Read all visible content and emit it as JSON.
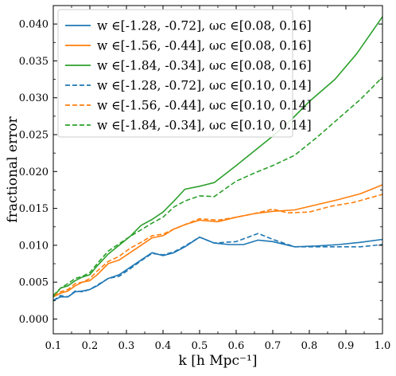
{
  "chart_data": {
    "type": "line",
    "title": "",
    "xlabel": "k [h Mpc⁻¹]",
    "ylabel": "fractional error",
    "xlim": [
      0.1,
      1.0
    ],
    "ylim": [
      -0.002,
      0.0425
    ],
    "xticks": [
      "0.1",
      "0.2",
      "0.3",
      "0.4",
      "0.5",
      "0.6",
      "0.7",
      "0.8",
      "0.9",
      "1.0"
    ],
    "yticks": [
      "0.000",
      "0.005",
      "0.010",
      "0.015",
      "0.020",
      "0.025",
      "0.030",
      "0.035",
      "0.040"
    ],
    "grid": false,
    "legend_position": "top-left",
    "series": [
      {
        "name": "w ∈[-1.28, -0.72], ωc ∈[0.08, 0.16]",
        "color": "#1f77b4",
        "dash": "solid",
        "x": [
          0.1,
          0.12,
          0.14,
          0.16,
          0.18,
          0.2,
          0.22,
          0.25,
          0.28,
          0.31,
          0.34,
          0.37,
          0.4,
          0.43,
          0.46,
          0.5,
          0.54,
          0.58,
          0.62,
          0.66,
          0.7,
          0.76,
          0.82,
          0.88,
          0.94,
          1.0
        ],
        "y": [
          0.0025,
          0.003,
          0.003,
          0.0037,
          0.0038,
          0.004,
          0.0045,
          0.0055,
          0.006,
          0.007,
          0.008,
          0.009,
          0.0086,
          0.009,
          0.0098,
          0.0111,
          0.0103,
          0.0101,
          0.0101,
          0.0107,
          0.0105,
          0.0098,
          0.0099,
          0.0101,
          0.0104,
          0.0108
        ]
      },
      {
        "name": "w ∈[-1.56, -0.44], ωc ∈[0.08, 0.16]",
        "color": "#ff7f0e",
        "dash": "solid",
        "x": [
          0.1,
          0.12,
          0.14,
          0.16,
          0.18,
          0.2,
          0.22,
          0.25,
          0.28,
          0.31,
          0.34,
          0.37,
          0.4,
          0.43,
          0.46,
          0.5,
          0.55,
          0.6,
          0.65,
          0.7,
          0.76,
          0.82,
          0.88,
          0.94,
          1.0
        ],
        "y": [
          0.003,
          0.0035,
          0.0038,
          0.0045,
          0.005,
          0.0052,
          0.006,
          0.0075,
          0.008,
          0.009,
          0.01,
          0.011,
          0.0113,
          0.0122,
          0.0128,
          0.0134,
          0.0132,
          0.0138,
          0.0143,
          0.0146,
          0.0148,
          0.0155,
          0.0162,
          0.017,
          0.0182
        ]
      },
      {
        "name": "w ∈[-1.84, -0.34], ωc ∈[0.08, 0.16]",
        "color": "#2ca02c",
        "dash": "solid",
        "x": [
          0.1,
          0.12,
          0.14,
          0.16,
          0.18,
          0.2,
          0.22,
          0.25,
          0.28,
          0.31,
          0.34,
          0.37,
          0.4,
          0.43,
          0.46,
          0.5,
          0.54,
          0.6,
          0.65,
          0.7,
          0.75,
          0.8,
          0.87,
          0.93,
          1.0
        ],
        "y": [
          0.003,
          0.0042,
          0.0045,
          0.0052,
          0.0057,
          0.006,
          0.0072,
          0.0088,
          0.01,
          0.0112,
          0.0127,
          0.0135,
          0.0145,
          0.016,
          0.0176,
          0.018,
          0.0185,
          0.0208,
          0.0228,
          0.0248,
          0.027,
          0.0295,
          0.0325,
          0.036,
          0.041
        ]
      },
      {
        "name": "w ∈[-1.28, -0.72], ωc ∈[0.10, 0.14]",
        "color": "#1f77b4",
        "dash": "dashed",
        "x": [
          0.1,
          0.12,
          0.14,
          0.16,
          0.18,
          0.2,
          0.22,
          0.25,
          0.28,
          0.31,
          0.34,
          0.37,
          0.4,
          0.43,
          0.46,
          0.5,
          0.54,
          0.6,
          0.66,
          0.7,
          0.76,
          0.82,
          0.88,
          0.94,
          1.0
        ],
        "y": [
          0.0025,
          0.0032,
          0.003,
          0.0038,
          0.0037,
          0.004,
          0.0046,
          0.0055,
          0.0058,
          0.0068,
          0.0079,
          0.0089,
          0.0087,
          0.0091,
          0.0099,
          0.0111,
          0.0103,
          0.0105,
          0.0116,
          0.0108,
          0.0098,
          0.0098,
          0.0098,
          0.0098,
          0.0101
        ]
      },
      {
        "name": "w ∈[-1.56, -0.44], ωc ∈[0.10, 0.14]",
        "color": "#ff7f0e",
        "dash": "dashed",
        "x": [
          0.1,
          0.12,
          0.14,
          0.16,
          0.18,
          0.2,
          0.22,
          0.25,
          0.28,
          0.31,
          0.34,
          0.37,
          0.4,
          0.43,
          0.46,
          0.5,
          0.55,
          0.6,
          0.65,
          0.7,
          0.74,
          0.8,
          0.86,
          0.92,
          1.0
        ],
        "y": [
          0.0032,
          0.0037,
          0.004,
          0.0048,
          0.005,
          0.0055,
          0.0065,
          0.0078,
          0.0085,
          0.0096,
          0.0104,
          0.0113,
          0.0115,
          0.0122,
          0.0128,
          0.0136,
          0.0134,
          0.0138,
          0.0143,
          0.0149,
          0.0144,
          0.0145,
          0.0153,
          0.0158,
          0.0169
        ]
      },
      {
        "name": "w ∈[-1.84, -0.34], ωc ∈[0.10, 0.14]",
        "color": "#2ca02c",
        "dash": "dashed",
        "x": [
          0.1,
          0.12,
          0.14,
          0.16,
          0.18,
          0.2,
          0.22,
          0.25,
          0.28,
          0.31,
          0.34,
          0.37,
          0.4,
          0.43,
          0.46,
          0.5,
          0.54,
          0.6,
          0.65,
          0.7,
          0.76,
          0.82,
          0.88,
          0.94,
          1.0
        ],
        "y": [
          0.0032,
          0.0042,
          0.0048,
          0.0055,
          0.0058,
          0.0063,
          0.0075,
          0.0092,
          0.0102,
          0.0112,
          0.0121,
          0.013,
          0.0138,
          0.0152,
          0.016,
          0.0167,
          0.0166,
          0.0187,
          0.0198,
          0.0208,
          0.0222,
          0.0246,
          0.0272,
          0.0298,
          0.0328
        ]
      }
    ]
  }
}
